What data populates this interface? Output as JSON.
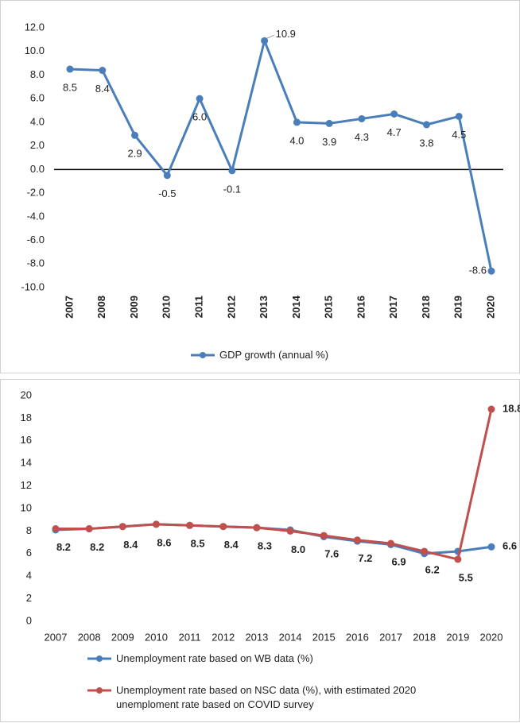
{
  "chart_data": [
    {
      "type": "line",
      "categories": [
        "2007",
        "2008",
        "2009",
        "2010",
        "2011",
        "2012",
        "2013",
        "2014",
        "2015",
        "2016",
        "2017",
        "2018",
        "2019",
        "2020"
      ],
      "series": [
        {
          "name": "GDP growth (annual %)",
          "color": "#4a7ebb",
          "values": [
            8.5,
            8.4,
            2.9,
            -0.5,
            6.0,
            -0.1,
            10.9,
            4.0,
            3.9,
            4.3,
            4.7,
            3.8,
            4.5,
            -8.6
          ],
          "value_labels": [
            "8.5",
            "8.4",
            "2.9",
            "-0.5",
            "6.0",
            "-0.1",
            "10.9",
            "4.0",
            "3.9",
            "4.3",
            "4.7",
            "3.8",
            "4.5",
            "-8.6"
          ]
        }
      ],
      "ylim": [
        -10,
        12
      ],
      "yticks": [
        {
          "value": -10,
          "label": "-10.0"
        },
        {
          "value": -8,
          "label": "-8.0"
        },
        {
          "value": -6,
          "label": "-6.0"
        },
        {
          "value": -4,
          "label": "-4.0"
        },
        {
          "value": -2,
          "label": "-2.0"
        },
        {
          "value": 0,
          "label": "0.0"
        },
        {
          "value": 2,
          "label": "2.0"
        },
        {
          "value": 4,
          "label": "4.0"
        },
        {
          "value": 6,
          "label": "6.0"
        },
        {
          "value": 8,
          "label": "8.0"
        },
        {
          "value": 10,
          "label": "10.0"
        },
        {
          "value": 12,
          "label": "12.0"
        }
      ],
      "legend": "bottom"
    },
    {
      "type": "line",
      "categories": [
        "2007",
        "2008",
        "2009",
        "2010",
        "2011",
        "2012",
        "2013",
        "2014",
        "2015",
        "2016",
        "2017",
        "2018",
        "2019",
        "2020"
      ],
      "series": [
        {
          "name": "Unemployment rate based on WB data (%)",
          "color": "#4a7ebb",
          "values": [
            8.1,
            8.2,
            8.4,
            8.6,
            8.5,
            8.4,
            8.3,
            8.1,
            7.5,
            7.1,
            6.8,
            6.0,
            6.2,
            6.6
          ],
          "value_labels": [
            null,
            null,
            null,
            null,
            null,
            null,
            null,
            null,
            null,
            null,
            null,
            null,
            null,
            "6.6"
          ]
        },
        {
          "name": "Unemployment rate based on NSC data (%), with estimated 2020 unemploment rate based on COVID survey",
          "color": "#c0504d",
          "values": [
            8.2,
            8.2,
            8.4,
            8.6,
            8.5,
            8.4,
            8.3,
            8.0,
            7.6,
            7.2,
            6.9,
            6.2,
            5.5,
            18.8
          ],
          "value_labels": [
            "8.2",
            "8.2",
            "8.4",
            "8.6",
            "8.5",
            "8.4",
            "8.3",
            "8.0",
            "7.6",
            "7.2",
            "6.9",
            "6.2",
            "5.5",
            "18.8"
          ]
        }
      ],
      "ylim": [
        0,
        20
      ],
      "yticks": [
        0,
        2,
        4,
        6,
        8,
        10,
        12,
        14,
        16,
        18,
        20
      ],
      "legend": "bottom"
    }
  ]
}
